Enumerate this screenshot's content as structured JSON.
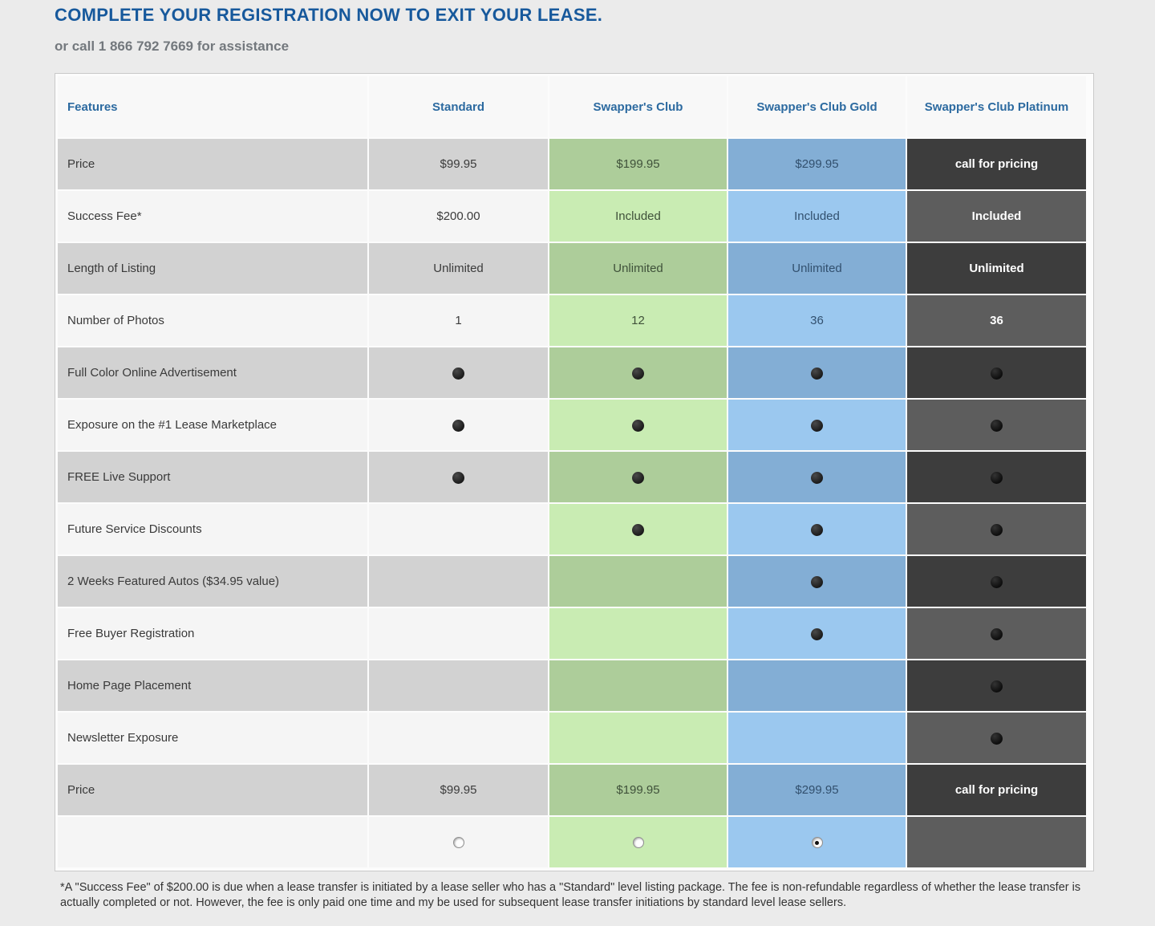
{
  "page": {
    "title": "COMPLETE YOUR REGISTRATION NOW TO EXIT YOUR LEASE.",
    "subtitle": "or call 1 866 792 7669 for assistance",
    "footnote": "*A \"Success Fee\" of $200.00 is due when a lease transfer is initiated by a lease seller who has a \"Standard\" level listing package. The fee is non-refundable regardless of whether the lease transfer is actually completed or not. However, the fee is only paid one time and my be used for subsequent lease transfer initiations by standard level lease sellers."
  },
  "colors": {
    "title_blue": "#17599c",
    "header_text_blue": "#2c6aa0",
    "row_gray_dark": "#d2d2d2",
    "row_gray_light": "#f5f5f5",
    "club_green_dark": "#adcd9a",
    "club_green_light": "#c9ecb3",
    "gold_blue_dark": "#83aed5",
    "gold_blue_light": "#9bc8ef",
    "platinum_dark": "#3d3d3d",
    "platinum_light": "#5d5d5d"
  },
  "table": {
    "columns": [
      {
        "key": "features",
        "label": "Features"
      },
      {
        "key": "standard",
        "label": "Standard"
      },
      {
        "key": "club",
        "label": "Swapper's Club"
      },
      {
        "key": "gold",
        "label": "Swapper's Club Gold"
      },
      {
        "key": "platinum",
        "label": "Swapper's Club Platinum"
      }
    ],
    "rows": [
      {
        "feature": "Price",
        "standard": "$99.95",
        "club": "$199.95",
        "gold": "$299.95",
        "platinum": "call for pricing"
      },
      {
        "feature": "Success Fee*",
        "standard": "$200.00",
        "club": "Included",
        "gold": "Included",
        "platinum": "Included"
      },
      {
        "feature": "Length of Listing",
        "standard": "Unlimited",
        "club": "Unlimited",
        "gold": "Unlimited",
        "platinum": "Unlimited"
      },
      {
        "feature": "Number of Photos",
        "standard": "1",
        "club": "12",
        "gold": "36",
        "platinum": "36"
      },
      {
        "feature": "Full Color Online Advertisement",
        "standard": "dot",
        "club": "dot",
        "gold": "dot",
        "platinum": "dot"
      },
      {
        "feature": "Exposure on the #1 Lease Marketplace",
        "standard": "dot",
        "club": "dot",
        "gold": "dot",
        "platinum": "dot"
      },
      {
        "feature": "FREE Live Support",
        "standard": "dot",
        "club": "dot",
        "gold": "dot",
        "platinum": "dot"
      },
      {
        "feature": "Future Service Discounts",
        "standard": "",
        "club": "dot",
        "gold": "dot",
        "platinum": "dot"
      },
      {
        "feature": "2 Weeks Featured Autos ($34.95 value)",
        "standard": "",
        "club": "",
        "gold": "dot",
        "platinum": "dot"
      },
      {
        "feature": "Free Buyer Registration",
        "standard": "",
        "club": "",
        "gold": "dot",
        "platinum": "dot"
      },
      {
        "feature": "Home Page Placement",
        "standard": "",
        "club": "",
        "gold": "",
        "platinum": "dot"
      },
      {
        "feature": "Newsletter Exposure",
        "standard": "",
        "club": "",
        "gold": "",
        "platinum": "dot"
      },
      {
        "feature": "Price",
        "standard": "$99.95",
        "club": "$199.95",
        "gold": "$299.95",
        "platinum": "call for pricing"
      }
    ],
    "selector_row": {
      "standard": "radio-unselected",
      "club": "radio-unselected",
      "gold": "radio-selected",
      "platinum": "none"
    }
  }
}
